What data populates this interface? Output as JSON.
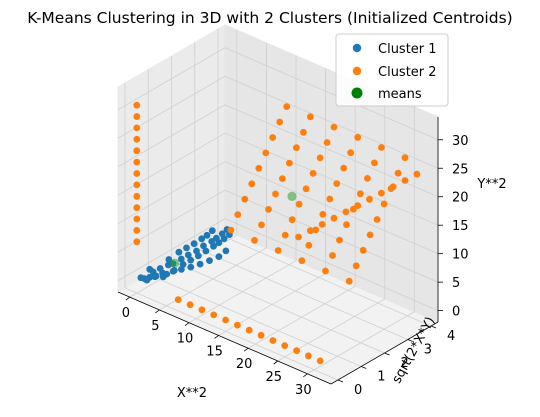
{
  "chart_data": {
    "type": "scatter",
    "projection": "3d",
    "title": "K-Means Clustering in 3D with 2 Clusters (Initialized Centroids)",
    "xlabel": "X**2",
    "ylabel": "sqrt(2*X*Y)",
    "zlabel": "Y**2",
    "xticks": [
      "0",
      "5",
      "10",
      "15",
      "20",
      "25",
      "30"
    ],
    "yticks": [
      "0",
      "1",
      "2",
      "3",
      "4"
    ],
    "zticks": [
      "0",
      "5",
      "10",
      "15",
      "20",
      "25",
      "30"
    ],
    "xlim": [
      -2,
      34
    ],
    "ylim": [
      -0.3,
      4.3
    ],
    "zlim": [
      -2,
      34
    ],
    "grid": true,
    "legend": {
      "position": "top-right",
      "entries": [
        "Cluster 1",
        "Cluster 2",
        "means"
      ]
    },
    "colors": {
      "cluster1": "#1f77b4",
      "cluster2": "#ff7f0e",
      "means": "#2ca02c"
    },
    "series": [
      {
        "name": "Cluster 1",
        "points": [
          [
            0.5,
            0.2,
            0.3
          ],
          [
            1.0,
            0.3,
            0.5
          ],
          [
            0.8,
            0.5,
            0.9
          ],
          [
            1.5,
            0.4,
            0.6
          ],
          [
            2.0,
            0.6,
            1.0
          ],
          [
            1.2,
            0.7,
            1.2
          ],
          [
            2.5,
            0.5,
            0.8
          ],
          [
            0.3,
            0.1,
            0.6
          ],
          [
            1.8,
            0.9,
            1.6
          ],
          [
            3.0,
            0.8,
            1.3
          ],
          [
            2.2,
            1.0,
            1.8
          ],
          [
            0.6,
            0.4,
            1.5
          ],
          [
            3.5,
            1.1,
            2.0
          ],
          [
            2.8,
            1.2,
            2.4
          ],
          [
            1.5,
            1.0,
            2.2
          ],
          [
            4.0,
            1.3,
            2.5
          ],
          [
            3.2,
            1.4,
            2.8
          ],
          [
            2.0,
            1.3,
            3.0
          ],
          [
            4.5,
            1.5,
            3.0
          ],
          [
            3.8,
            1.6,
            3.3
          ],
          [
            2.5,
            1.5,
            3.5
          ],
          [
            5.0,
            1.7,
            3.6
          ],
          [
            4.2,
            1.8,
            3.9
          ],
          [
            3.0,
            1.7,
            4.0
          ],
          [
            5.5,
            1.9,
            4.2
          ],
          [
            4.8,
            2.0,
            4.5
          ],
          [
            3.5,
            1.9,
            4.6
          ],
          [
            6.0,
            2.0,
            4.8
          ],
          [
            5.2,
            2.1,
            5.0
          ],
          [
            4.0,
            2.0,
            5.2
          ],
          [
            6.5,
            2.1,
            5.5
          ],
          [
            5.8,
            2.2,
            5.8
          ],
          [
            4.5,
            2.1,
            6.0
          ],
          [
            7.0,
            2.2,
            6.2
          ],
          [
            6.2,
            2.3,
            6.5
          ],
          [
            0.9,
            0.2,
            0.2
          ],
          [
            1.3,
            0.5,
            0.4
          ],
          [
            2.3,
            0.7,
            0.7
          ],
          [
            2.8,
            0.9,
            1.1
          ],
          [
            3.6,
            1.0,
            1.4
          ],
          [
            4.4,
            1.2,
            1.7
          ],
          [
            5.2,
            1.4,
            2.1
          ],
          [
            6.0,
            1.6,
            2.6
          ],
          [
            6.8,
            1.8,
            3.2
          ],
          [
            7.2,
            2.0,
            3.9
          ]
        ]
      },
      {
        "name": "Cluster 2",
        "points": [
          [
            7,
            0,
            0
          ],
          [
            9,
            0,
            0
          ],
          [
            11,
            0,
            0
          ],
          [
            13,
            0,
            0
          ],
          [
            15,
            0,
            0
          ],
          [
            17,
            0,
            0
          ],
          [
            19,
            0,
            0
          ],
          [
            21,
            0,
            0
          ],
          [
            23,
            0,
            0
          ],
          [
            25,
            0,
            0
          ],
          [
            27,
            0,
            0
          ],
          [
            29,
            0,
            0
          ],
          [
            31,
            0,
            0
          ],
          [
            0,
            0,
            7
          ],
          [
            0,
            0,
            9
          ],
          [
            0,
            0,
            11
          ],
          [
            0,
            0,
            13
          ],
          [
            0,
            0,
            15
          ],
          [
            0,
            0,
            17
          ],
          [
            0,
            0,
            19
          ],
          [
            0,
            0,
            21
          ],
          [
            0,
            0,
            23
          ],
          [
            0,
            0,
            25
          ],
          [
            0,
            0,
            27
          ],
          [
            0,
            0,
            29
          ],
          [
            0,
            0,
            31
          ],
          [
            10,
            1.5,
            10
          ],
          [
            10,
            1.8,
            12
          ],
          [
            10,
            2.1,
            14
          ],
          [
            10,
            2.4,
            16
          ],
          [
            10,
            2.7,
            18
          ],
          [
            10,
            3.0,
            20
          ],
          [
            10,
            3.3,
            22
          ],
          [
            10,
            3.6,
            24
          ],
          [
            10,
            3.9,
            26
          ],
          [
            14,
            1.5,
            10
          ],
          [
            14,
            1.8,
            12
          ],
          [
            14,
            2.1,
            14
          ],
          [
            14,
            2.4,
            16
          ],
          [
            14,
            2.7,
            18
          ],
          [
            14,
            3.0,
            20
          ],
          [
            14,
            3.3,
            22
          ],
          [
            14,
            3.6,
            24
          ],
          [
            14,
            3.9,
            26
          ],
          [
            18,
            1.5,
            10
          ],
          [
            18,
            1.8,
            12
          ],
          [
            18,
            2.1,
            14
          ],
          [
            18,
            2.4,
            16
          ],
          [
            18,
            2.7,
            18
          ],
          [
            18,
            3.0,
            20
          ],
          [
            18,
            3.3,
            22
          ],
          [
            18,
            3.6,
            24
          ],
          [
            18,
            3.9,
            26
          ],
          [
            22,
            1.5,
            10
          ],
          [
            22,
            1.8,
            12
          ],
          [
            22,
            2.1,
            14
          ],
          [
            22,
            2.4,
            16
          ],
          [
            22,
            2.7,
            18
          ],
          [
            22,
            3.0,
            20
          ],
          [
            22,
            3.3,
            22
          ],
          [
            22,
            3.6,
            24
          ],
          [
            22,
            3.9,
            26
          ],
          [
            26,
            1.5,
            10
          ],
          [
            26,
            1.8,
            12
          ],
          [
            26,
            2.1,
            14
          ],
          [
            26,
            2.4,
            16
          ],
          [
            26,
            2.7,
            18
          ],
          [
            26,
            3.0,
            20
          ],
          [
            26,
            3.3,
            22
          ],
          [
            26,
            3.6,
            24
          ],
          [
            26,
            3.9,
            26
          ],
          [
            30,
            1.5,
            10
          ],
          [
            30,
            1.8,
            12
          ],
          [
            30,
            2.1,
            14
          ],
          [
            30,
            2.4,
            16
          ],
          [
            30,
            2.7,
            18
          ],
          [
            30,
            3.0,
            20
          ],
          [
            30,
            3.3,
            22
          ],
          [
            30,
            3.6,
            24
          ],
          [
            30,
            3.9,
            26
          ],
          [
            12,
            3.9,
            4
          ],
          [
            14,
            3.9,
            6
          ],
          [
            16,
            3.9,
            8
          ],
          [
            18,
            3.9,
            10
          ],
          [
            20,
            3.9,
            12
          ],
          [
            22,
            3.9,
            14
          ],
          [
            24,
            3.9,
            16
          ],
          [
            26,
            3.9,
            18
          ],
          [
            28,
            3.9,
            20
          ],
          [
            30,
            3.9,
            22
          ],
          [
            32,
            3.9,
            24
          ]
        ]
      },
      {
        "name": "means",
        "points": [
          [
            2.5,
            1.0,
            2.0
          ],
          [
            16,
            2.6,
            16
          ]
        ]
      }
    ]
  }
}
